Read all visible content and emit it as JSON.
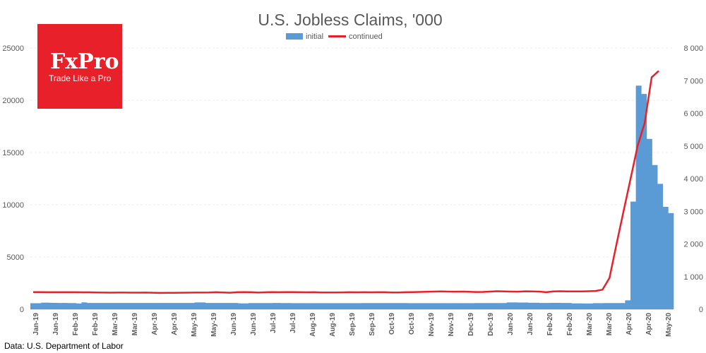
{
  "logo": {
    "brand": "FxPro",
    "tagline": "Trade Like a Pro"
  },
  "source": "Data: U.S. Department of Labor",
  "colors": {
    "initial": "#5b9bd5",
    "continued": "#e8202a",
    "logo_bg": "#e8202a"
  },
  "chart_data": {
    "type": "bar",
    "title": "U.S. Jobless Claims, '000",
    "legend": [
      "initial",
      "continued"
    ],
    "legend_position": "top",
    "grid": true,
    "y_left": {
      "ylim": [
        0,
        25000
      ],
      "ticks": [
        "0",
        "5000",
        "10000",
        "15000",
        "20000",
        "25000"
      ]
    },
    "y_right": {
      "ylim": [
        0,
        8000
      ],
      "ticks": [
        "0",
        "1 000",
        "2 000",
        "3 000",
        "4 000",
        "5 000",
        "6 000",
        "7 000",
        "8 000"
      ]
    },
    "x_tick_labels": [
      "Jan-19",
      "Jan-19",
      "Feb-19",
      "Feb-19",
      "Mar-19",
      "Mar-19",
      "Apr-19",
      "Apr-19",
      "May-19",
      "May-19",
      "Jun-19",
      "Jun-19",
      "Jul-19",
      "Jul-19",
      "Aug-19",
      "Aug-19",
      "Sep-19",
      "Sep-19",
      "Oct-19",
      "Oct-19",
      "Nov-19",
      "Nov-19",
      "Dec-19",
      "Dec-19",
      "Jan-20",
      "Jan-20",
      "Feb-20",
      "Feb-20",
      "Mar-20",
      "Mar-20",
      "Apr-20",
      "Apr-20",
      "May-20"
    ],
    "series": [
      {
        "name": "initial",
        "type": "bar",
        "axis": "left",
        "values": [
          575,
          575,
          575,
          575,
          630,
          630,
          630,
          620,
          610,
          610,
          600,
          600,
          605,
          600,
          590,
          590,
          590,
          560,
          540,
          660,
          650,
          600,
          600,
          600,
          600,
          600,
          600,
          600,
          600,
          600,
          600,
          600,
          600,
          600,
          600,
          600,
          600,
          600,
          600,
          600,
          600,
          600,
          600,
          600,
          600,
          600,
          600,
          600,
          600,
          600,
          600,
          600,
          600,
          600,
          600,
          600,
          600,
          600,
          600,
          600,
          600,
          650,
          650,
          650,
          650,
          600,
          600,
          600,
          600,
          600,
          600,
          600,
          600,
          600,
          600,
          600,
          600,
          570,
          560,
          560,
          560,
          590,
          590,
          590,
          590,
          590,
          590,
          590,
          590,
          590,
          600,
          600,
          600,
          590,
          590,
          590,
          590,
          580,
          580,
          580,
          580,
          580,
          580,
          580,
          580,
          580,
          580,
          580,
          580,
          580,
          580,
          580,
          580,
          580,
          580,
          580,
          580,
          580,
          580,
          580,
          580,
          580,
          580,
          590,
          590,
          590,
          590,
          590,
          590,
          590,
          590,
          590,
          590,
          590,
          590,
          590,
          590,
          590,
          590,
          590,
          580,
          580,
          580,
          580,
          580,
          580,
          580,
          580,
          580,
          580,
          580,
          580,
          580,
          580,
          580,
          580,
          580,
          580,
          580,
          580,
          580,
          580,
          580,
          580,
          580,
          590,
          590,
          590,
          590,
          590,
          590,
          590,
          590,
          590,
          590,
          590,
          590,
          650,
          650,
          650,
          650,
          640,
          640,
          640,
          640,
          620,
          620,
          620,
          620,
          600,
          600,
          600,
          600,
          610,
          610,
          610,
          610,
          600,
          600,
          600,
          600,
          560,
          560,
          560,
          560,
          550,
          550,
          550,
          550,
          580,
          580,
          580,
          580,
          590,
          590,
          590,
          590,
          590,
          590,
          590,
          590,
          850,
          850,
          10300,
          10300,
          21400,
          21400,
          20600,
          20600,
          16300,
          16300,
          13800,
          13800,
          12000,
          12000,
          9800,
          9800,
          9200,
          9200
        ]
      },
      {
        "name": "continued",
        "type": "line",
        "axis": "right",
        "values": [
          525,
          525,
          522,
          522,
          520,
          520,
          520,
          518,
          518,
          515,
          510,
          508,
          510,
          510,
          508,
          508,
          510,
          505,
          500,
          502,
          504,
          505,
          508,
          510,
          510,
          512,
          520,
          515,
          505,
          520,
          525,
          520,
          510,
          518,
          525,
          522,
          525,
          524,
          520,
          518,
          520,
          515,
          514,
          515,
          516,
          520,
          518,
          520,
          518,
          522,
          520,
          515,
          515,
          520,
          525,
          530,
          535,
          540,
          545,
          540,
          538,
          540,
          535,
          528,
          530,
          540,
          552,
          548,
          540,
          538,
          550,
          548,
          540,
          520,
          545,
          552,
          548,
          545,
          545,
          552,
          560,
          600,
          960,
          2000,
          3000,
          4000,
          5000,
          5700,
          7100,
          7300
        ]
      }
    ]
  }
}
